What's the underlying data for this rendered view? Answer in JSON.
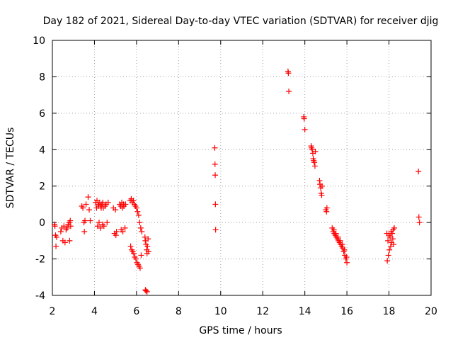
{
  "chart_data": {
    "type": "scatter",
    "title": "Day 182 of 2021, Sidereal Day-to-day VTEC variation (SDTVAR) for receiver djig",
    "xlabel": "GPS time / hours",
    "ylabel": "SDTVAR / TECUs",
    "xlim": [
      2,
      20
    ],
    "ylim": [
      -4,
      10
    ],
    "x_ticks": [
      2,
      4,
      6,
      8,
      10,
      12,
      14,
      16,
      18,
      20
    ],
    "y_ticks": [
      -4,
      -2,
      0,
      2,
      4,
      6,
      8,
      10
    ],
    "x_tick_labels": [
      "2",
      "4",
      "6",
      "8",
      "10",
      "12",
      "14",
      "16",
      "18",
      "20"
    ],
    "y_tick_labels": [
      "-4",
      "-2",
      "0",
      "2",
      "4",
      "6",
      "8",
      "10"
    ],
    "grid": true,
    "marker": "+",
    "color": "#ff0000",
    "series": [
      {
        "name": "djig",
        "points": [
          [
            2.1,
            -0.1
          ],
          [
            2.12,
            -0.2
          ],
          [
            2.15,
            -0.7
          ],
          [
            2.17,
            -1.3
          ],
          [
            2.2,
            -0.8
          ],
          [
            2.4,
            -0.5
          ],
          [
            2.45,
            -0.3
          ],
          [
            2.5,
            -1.0
          ],
          [
            2.55,
            -0.2
          ],
          [
            2.6,
            -1.1
          ],
          [
            2.65,
            -0.4
          ],
          [
            2.7,
            -0.3
          ],
          [
            2.75,
            -0.1
          ],
          [
            2.8,
            0.0
          ],
          [
            2.82,
            -1.0
          ],
          [
            2.85,
            0.1
          ],
          [
            2.87,
            -0.2
          ],
          [
            3.4,
            0.9
          ],
          [
            3.45,
            0.8
          ],
          [
            3.5,
            0.0
          ],
          [
            3.52,
            -0.5
          ],
          [
            3.55,
            0.1
          ],
          [
            3.6,
            1.0
          ],
          [
            3.7,
            1.4
          ],
          [
            3.75,
            0.7
          ],
          [
            3.8,
            0.1
          ],
          [
            4.05,
            1.1
          ],
          [
            4.1,
            0.8
          ],
          [
            4.12,
            1.2
          ],
          [
            4.15,
            -0.2
          ],
          [
            4.18,
            0.9
          ],
          [
            4.2,
            1.0
          ],
          [
            4.22,
            0.0
          ],
          [
            4.25,
            1.1
          ],
          [
            4.28,
            -0.3
          ],
          [
            4.3,
            0.9
          ],
          [
            4.32,
            0.8
          ],
          [
            4.35,
            1.0
          ],
          [
            4.38,
            -0.1
          ],
          [
            4.4,
            1.1
          ],
          [
            4.42,
            0.8
          ],
          [
            4.45,
            -0.2
          ],
          [
            4.5,
            0.9
          ],
          [
            4.55,
            1.0
          ],
          [
            4.6,
            0.0
          ],
          [
            4.65,
            1.1
          ],
          [
            4.9,
            0.8
          ],
          [
            4.95,
            -0.6
          ],
          [
            5.0,
            0.7
          ],
          [
            5.02,
            -0.7
          ],
          [
            5.05,
            -0.5
          ],
          [
            5.2,
            1.0
          ],
          [
            5.25,
            0.9
          ],
          [
            5.27,
            -0.4
          ],
          [
            5.3,
            1.1
          ],
          [
            5.32,
            0.8
          ],
          [
            5.35,
            -0.5
          ],
          [
            5.38,
            1.0
          ],
          [
            5.4,
            0.9
          ],
          [
            5.45,
            -0.3
          ],
          [
            5.48,
            1.0
          ],
          [
            5.7,
            1.2
          ],
          [
            5.72,
            -1.3
          ],
          [
            5.75,
            1.3
          ],
          [
            5.77,
            -1.5
          ],
          [
            5.8,
            1.1
          ],
          [
            5.82,
            -1.6
          ],
          [
            5.85,
            1.2
          ],
          [
            5.87,
            -1.7
          ],
          [
            5.9,
            1.0
          ],
          [
            5.92,
            -1.9
          ],
          [
            5.95,
            0.9
          ],
          [
            5.97,
            -2.0
          ],
          [
            6.0,
            0.8
          ],
          [
            6.02,
            -2.2
          ],
          [
            6.05,
            0.6
          ],
          [
            6.07,
            -2.3
          ],
          [
            6.1,
            0.4
          ],
          [
            6.12,
            -2.4
          ],
          [
            6.15,
            0.0
          ],
          [
            6.17,
            -2.5
          ],
          [
            6.2,
            -0.3
          ],
          [
            6.22,
            -1.8
          ],
          [
            6.25,
            -0.5
          ],
          [
            6.4,
            -0.8
          ],
          [
            6.42,
            -1.0
          ],
          [
            6.45,
            -1.2
          ],
          [
            6.48,
            -1.5
          ],
          [
            6.5,
            -1.7
          ],
          [
            6.52,
            -1.3
          ],
          [
            6.55,
            -0.9
          ],
          [
            6.57,
            -1.6
          ],
          [
            6.42,
            -3.7
          ],
          [
            6.45,
            -3.75
          ],
          [
            6.5,
            -3.8
          ],
          [
            9.72,
            4.1
          ],
          [
            9.73,
            3.2
          ],
          [
            9.74,
            2.6
          ],
          [
            9.75,
            1.0
          ],
          [
            9.76,
            -0.4
          ],
          [
            13.2,
            8.3
          ],
          [
            13.22,
            8.2
          ],
          [
            13.24,
            7.2
          ],
          [
            13.95,
            5.8
          ],
          [
            13.97,
            5.7
          ],
          [
            14.0,
            5.1
          ],
          [
            14.3,
            4.2
          ],
          [
            14.32,
            4.1
          ],
          [
            14.35,
            4.0
          ],
          [
            14.38,
            3.8
          ],
          [
            14.4,
            3.5
          ],
          [
            14.42,
            3.4
          ],
          [
            14.45,
            3.3
          ],
          [
            14.48,
            3.1
          ],
          [
            14.5,
            3.9
          ],
          [
            14.7,
            2.3
          ],
          [
            14.72,
            2.1
          ],
          [
            14.75,
            1.9
          ],
          [
            14.78,
            1.6
          ],
          [
            14.8,
            1.5
          ],
          [
            14.82,
            2.0
          ],
          [
            15.0,
            0.7
          ],
          [
            15.03,
            0.6
          ],
          [
            15.05,
            0.8
          ],
          [
            15.3,
            -0.3
          ],
          [
            15.35,
            -0.5
          ],
          [
            15.4,
            -0.6
          ],
          [
            15.45,
            -0.7
          ],
          [
            15.5,
            -0.8
          ],
          [
            15.55,
            -0.9
          ],
          [
            15.6,
            -1.0
          ],
          [
            15.65,
            -1.1
          ],
          [
            15.7,
            -1.2
          ],
          [
            15.75,
            -1.3
          ],
          [
            15.8,
            -1.4
          ],
          [
            15.85,
            -1.6
          ],
          [
            15.9,
            -1.8
          ],
          [
            15.95,
            -2.0
          ],
          [
            16.0,
            -2.2
          ],
          [
            15.38,
            -0.4
          ],
          [
            15.48,
            -0.6
          ],
          [
            15.58,
            -0.8
          ],
          [
            15.68,
            -1.0
          ],
          [
            15.78,
            -1.2
          ],
          [
            15.88,
            -1.5
          ],
          [
            15.98,
            -1.9
          ],
          [
            17.9,
            -0.6
          ],
          [
            17.92,
            -2.1
          ],
          [
            17.95,
            -1.0
          ],
          [
            17.97,
            -1.8
          ],
          [
            18.0,
            -0.7
          ],
          [
            18.02,
            -1.5
          ],
          [
            18.05,
            -0.8
          ],
          [
            18.08,
            -1.3
          ],
          [
            18.1,
            -0.5
          ],
          [
            18.12,
            -1.1
          ],
          [
            18.15,
            -0.6
          ],
          [
            18.18,
            -0.9
          ],
          [
            18.2,
            -0.4
          ],
          [
            18.22,
            -1.2
          ],
          [
            18.25,
            -0.3
          ],
          [
            19.4,
            2.8
          ],
          [
            19.42,
            0.3
          ],
          [
            19.45,
            0.0
          ]
        ]
      }
    ]
  }
}
